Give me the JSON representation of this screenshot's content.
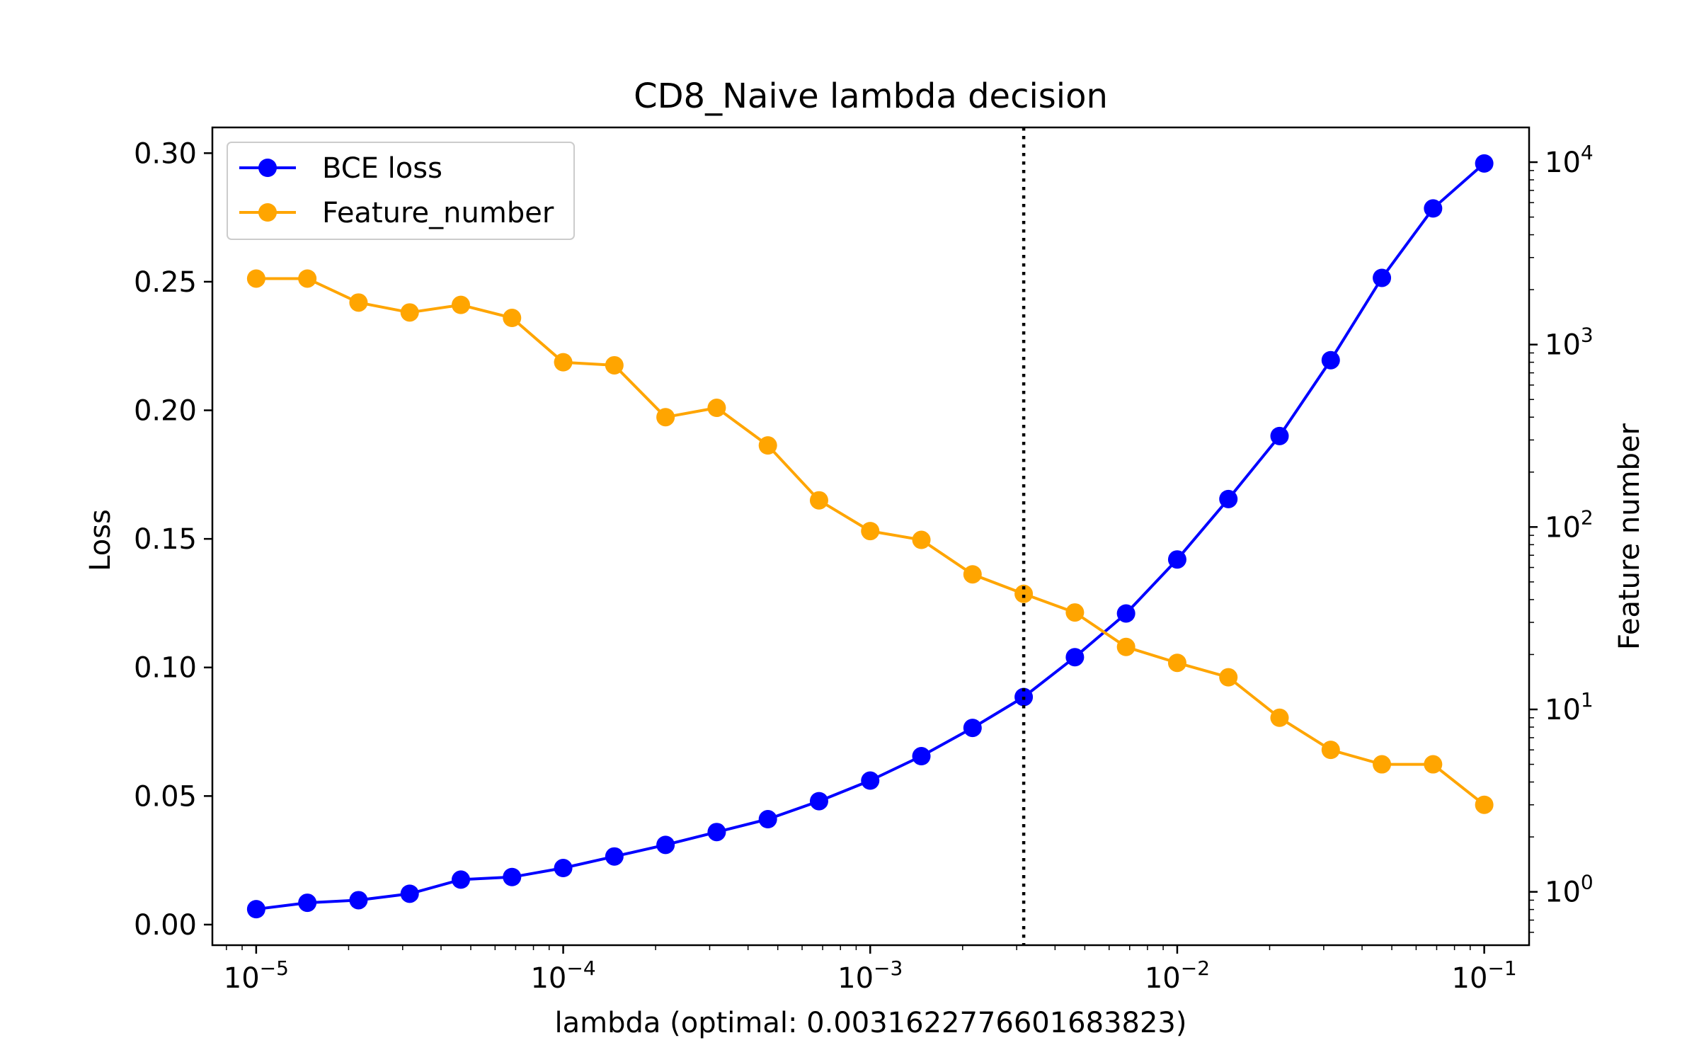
{
  "chart_data": {
    "type": "line",
    "title": "CD8_Naive lambda decision",
    "xlabel": "lambda (optimal: 0.0031622776601683823)",
    "ylabel": "Loss",
    "y2label": "Feature number",
    "xscale": "log",
    "y2scale": "log",
    "xlim": [
      7.2e-06,
      0.14
    ],
    "ylim": [
      -0.008,
      0.31
    ],
    "y2lim": [
      0.51,
      15500
    ],
    "x_ticks": [
      {
        "value": 1e-05,
        "base": "10",
        "exp": "−5"
      },
      {
        "value": 0.0001,
        "base": "10",
        "exp": "−4"
      },
      {
        "value": 0.001,
        "base": "10",
        "exp": "−3"
      },
      {
        "value": 0.01,
        "base": "10",
        "exp": "−2"
      },
      {
        "value": 0.1,
        "base": "10",
        "exp": "−1"
      }
    ],
    "y_ticks": [
      {
        "value": 0.0,
        "label": "0.00"
      },
      {
        "value": 0.05,
        "label": "0.05"
      },
      {
        "value": 0.1,
        "label": "0.10"
      },
      {
        "value": 0.15,
        "label": "0.15"
      },
      {
        "value": 0.2,
        "label": "0.20"
      },
      {
        "value": 0.25,
        "label": "0.25"
      },
      {
        "value": 0.3,
        "label": "0.30"
      }
    ],
    "y2_ticks": [
      {
        "value": 1,
        "base": "10",
        "exp": "0"
      },
      {
        "value": 10,
        "base": "10",
        "exp": "1"
      },
      {
        "value": 100,
        "base": "10",
        "exp": "2"
      },
      {
        "value": 1000,
        "base": "10",
        "exp": "3"
      },
      {
        "value": 10000,
        "base": "10",
        "exp": "4"
      }
    ],
    "vline": {
      "x": 0.0031622776601683824,
      "style": "dotted",
      "color": "#000000"
    },
    "x": [
      1e-05,
      1.4678e-05,
      2.1544e-05,
      3.1623e-05,
      4.6416e-05,
      6.8129e-05,
      0.0001,
      0.00014678,
      0.00021544,
      0.00031623,
      0.00046416,
      0.00068129,
      0.001,
      0.0014678,
      0.0021544,
      0.0031623,
      0.0046416,
      0.0068129,
      0.01,
      0.014678,
      0.021544,
      0.031623,
      0.046416,
      0.068129,
      0.1
    ],
    "series": [
      {
        "name": "BCE loss",
        "axis": "left",
        "color": "#0000ff",
        "values": [
          0.006,
          0.0085,
          0.0095,
          0.012,
          0.0175,
          0.0185,
          0.022,
          0.0265,
          0.031,
          0.036,
          0.041,
          0.048,
          0.056,
          0.0655,
          0.0765,
          0.0885,
          0.104,
          0.121,
          0.142,
          0.1655,
          0.19,
          0.2195,
          0.2515,
          0.2785,
          0.296
        ]
      },
      {
        "name": "Feature_number",
        "axis": "right",
        "color": "#ffa500",
        "values": [
          2300,
          2300,
          1700,
          1500,
          1650,
          1400,
          800,
          770,
          400,
          450,
          280,
          140,
          95,
          85,
          55,
          43,
          34,
          22,
          18,
          15,
          9,
          6,
          5,
          5,
          3
        ]
      }
    ],
    "legend": {
      "position": "top-left"
    }
  }
}
